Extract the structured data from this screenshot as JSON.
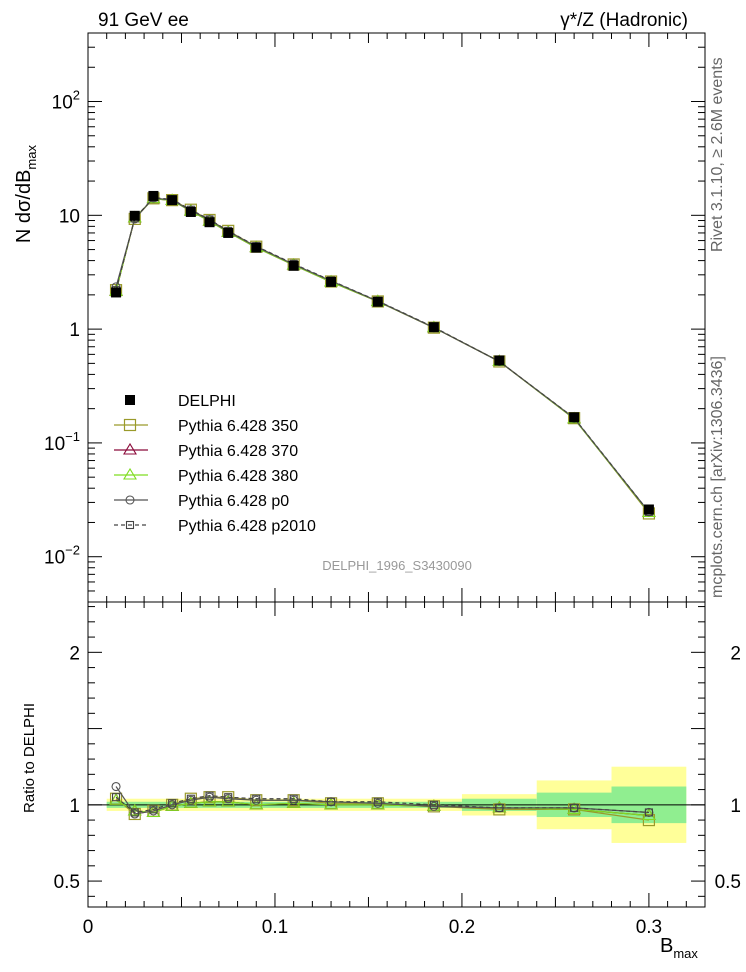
{
  "header": {
    "left": "91 GeV ee",
    "right": "γ*/Z (Hadronic)"
  },
  "side_text": {
    "rivet": "Rivet 3.1.10, ≥ 2.6M events",
    "mcplots": "mcplots.cern.ch [arXiv:1306.3436]"
  },
  "watermark": "DELPHI_1996_S3430090",
  "chart_data": [
    {
      "type": "line",
      "panel": "main",
      "yscale": "log",
      "ylabel_main": "N dσ/dB",
      "ylabel_sub": "max",
      "xlim": [
        0,
        0.33
      ],
      "ylim": [
        0.004,
        400
      ],
      "ytick_labels": [
        {
          "value": 100,
          "base": "10",
          "exp": "2"
        },
        {
          "value": 10,
          "base": "10",
          "exp": ""
        },
        {
          "value": 1,
          "base": "1",
          "exp": ""
        },
        {
          "value": 0.1,
          "base": "10",
          "exp": "−1"
        },
        {
          "value": 0.01,
          "base": "10",
          "exp": "−2"
        }
      ],
      "legend_position": "bottom-left",
      "x": [
        0.015,
        0.025,
        0.035,
        0.045,
        0.055,
        0.065,
        0.075,
        0.09,
        0.11,
        0.13,
        0.155,
        0.185,
        0.22,
        0.26,
        0.3
      ],
      "series": [
        {
          "name": "DELPHI",
          "color": "#000000",
          "marker": "filled-square",
          "line": "none",
          "values": [
            2.1,
            9.9,
            14.8,
            13.6,
            10.7,
            8.7,
            7.0,
            5.2,
            3.6,
            2.6,
            1.74,
            1.04,
            0.53,
            0.168,
            0.026
          ]
        },
        {
          "name": "Pythia 6.428 350",
          "color": "#9a9a2a",
          "marker": "open-square",
          "line": "solid",
          "values": [
            2.2,
            9.3,
            14.1,
            13.6,
            11.2,
            9.1,
            7.3,
            5.3,
            3.7,
            2.62,
            1.75,
            1.03,
            0.52,
            0.165,
            0.024
          ]
        },
        {
          "name": "Pythia 6.428 370",
          "color": "#8b0a3a",
          "marker": "open-triangle",
          "line": "solid",
          "values": [
            2.15,
            9.5,
            14.0,
            13.5,
            10.9,
            8.9,
            7.1,
            5.2,
            3.65,
            2.6,
            1.75,
            1.03,
            0.52,
            0.163,
            0.0245
          ]
        },
        {
          "name": "Pythia 6.428 380",
          "color": "#7fdd20",
          "marker": "open-triangle",
          "line": "solid",
          "values": [
            2.15,
            9.5,
            14.0,
            13.5,
            10.9,
            8.9,
            7.1,
            5.2,
            3.65,
            2.6,
            1.75,
            1.03,
            0.52,
            0.163,
            0.0245
          ]
        },
        {
          "name": "Pythia 6.428 p0",
          "color": "#555555",
          "marker": "open-circle",
          "line": "solid",
          "values": [
            2.35,
            9.3,
            14.2,
            13.6,
            11.0,
            9.1,
            7.2,
            5.3,
            3.7,
            2.65,
            1.76,
            1.03,
            0.52,
            0.165,
            0.0248
          ]
        },
        {
          "name": "Pythia 6.428 p2010",
          "color": "#444444",
          "marker": "open-square-small",
          "line": "dashed",
          "values": [
            2.2,
            9.4,
            14.3,
            13.8,
            11.2,
            9.2,
            7.3,
            5.35,
            3.75,
            2.67,
            1.77,
            1.04,
            0.52,
            0.166,
            0.0248
          ]
        }
      ]
    },
    {
      "type": "line",
      "panel": "ratio",
      "ylabel": "Ratio to DELPHI",
      "xlabel_main": "B",
      "xlabel_sub": "max",
      "xlim": [
        0,
        0.33
      ],
      "ylim": [
        0.33,
        2.33
      ],
      "ytick_labels": [
        "2",
        "1",
        "0.5"
      ],
      "ytick_values": [
        2,
        1,
        0.5
      ],
      "xtick_labels": [
        "0",
        "0.1",
        "0.2",
        "0.3"
      ],
      "xtick_values": [
        0,
        0.1,
        0.2,
        0.3
      ],
      "bands": [
        {
          "x0": 0.01,
          "x1": 0.2,
          "stat": 0.02,
          "tot": 0.04
        },
        {
          "x0": 0.2,
          "x1": 0.24,
          "stat": 0.04,
          "tot": 0.07
        },
        {
          "x0": 0.24,
          "x1": 0.28,
          "stat": 0.08,
          "tot": 0.16
        },
        {
          "x0": 0.28,
          "x1": 0.32,
          "stat": 0.12,
          "tot": 0.25
        }
      ],
      "x": [
        0.015,
        0.025,
        0.035,
        0.045,
        0.055,
        0.065,
        0.075,
        0.09,
        0.11,
        0.13,
        0.155,
        0.185,
        0.22,
        0.26,
        0.3
      ],
      "series": [
        {
          "name": "Pythia 6.428 350",
          "color": "#9a9a2a",
          "marker": "open-square",
          "line": "solid",
          "values": [
            1.04,
            0.94,
            0.96,
            1.0,
            1.04,
            1.05,
            1.05,
            1.03,
            1.03,
            1.01,
            1.01,
            0.99,
            0.97,
            0.97,
            0.9
          ]
        },
        {
          "name": "Pythia 6.428 370",
          "color": "#8b0a3a",
          "marker": "open-triangle",
          "line": "solid",
          "values": [
            1.03,
            0.96,
            0.95,
            0.99,
            1.01,
            1.02,
            1.02,
            1.0,
            1.01,
            1.0,
            1.0,
            0.99,
            0.98,
            0.97,
            0.93
          ]
        },
        {
          "name": "Pythia 6.428 380",
          "color": "#7fdd20",
          "marker": "open-triangle",
          "line": "solid",
          "values": [
            1.03,
            0.96,
            0.95,
            0.99,
            1.01,
            1.02,
            1.02,
            1.0,
            1.01,
            1.0,
            1.0,
            0.99,
            0.98,
            0.97,
            0.93
          ]
        },
        {
          "name": "Pythia 6.428 p0",
          "color": "#555555",
          "marker": "open-circle",
          "line": "solid",
          "values": [
            1.12,
            0.94,
            0.96,
            1.0,
            1.03,
            1.05,
            1.04,
            1.03,
            1.03,
            1.02,
            1.01,
            0.99,
            0.98,
            0.98,
            0.95
          ]
        },
        {
          "name": "Pythia 6.428 p2010",
          "color": "#444444",
          "marker": "open-square-small",
          "line": "dashed",
          "values": [
            1.05,
            0.95,
            0.97,
            1.01,
            1.04,
            1.06,
            1.05,
            1.04,
            1.04,
            1.02,
            1.02,
            1.0,
            0.98,
            0.98,
            0.95
          ]
        }
      ]
    }
  ]
}
